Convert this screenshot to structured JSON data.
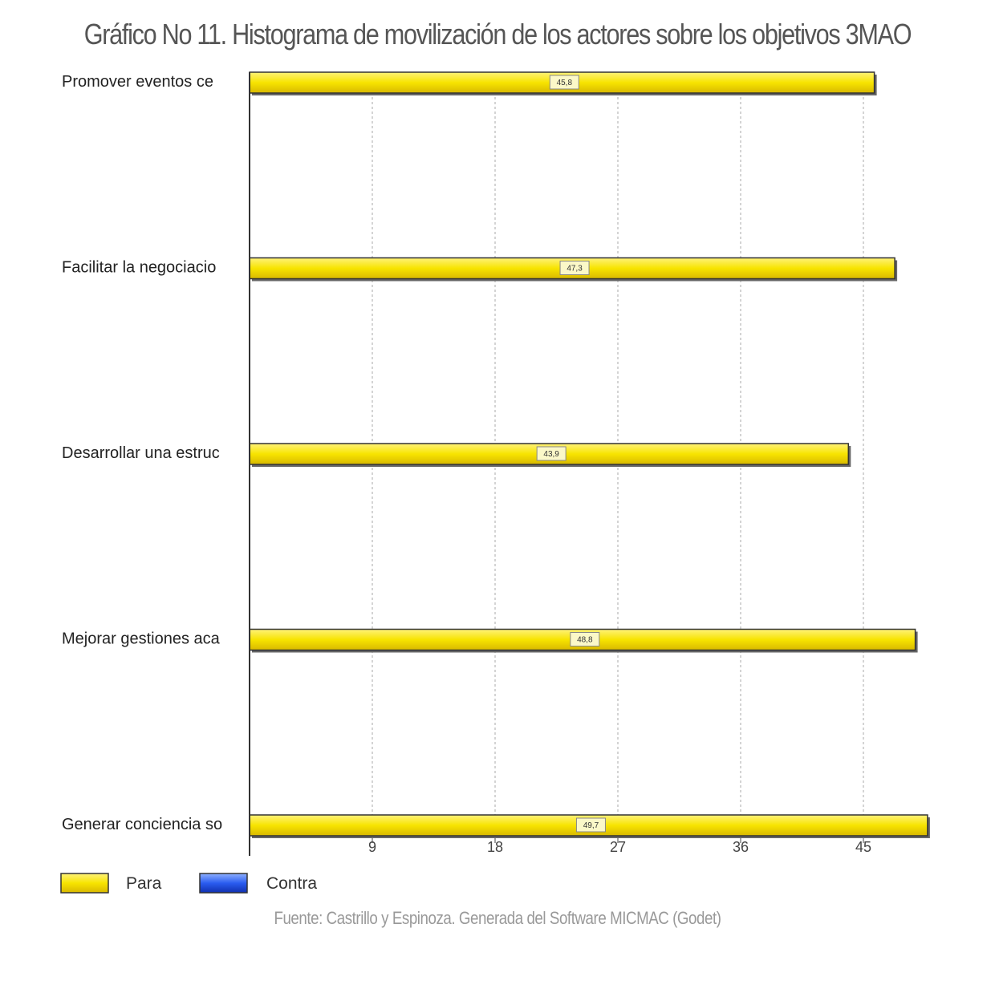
{
  "chart_data": {
    "type": "bar",
    "orientation": "horizontal",
    "title": "Gráfico No 11. Histograma de movilización de los actores sobre los objetivos 3MAO",
    "categories": [
      "Promover eventos ce",
      "Facilitar la negociacio",
      "Desarrollar una estruc",
      "Mejorar gestiones aca",
      "Generar conciencia so"
    ],
    "series": [
      {
        "name": "Para",
        "color": "#f5e000",
        "values": [
          45.8,
          47.3,
          43.9,
          48.8,
          49.7
        ]
      },
      {
        "name": "Contra",
        "color": "#1f4fe0",
        "values": [
          0,
          0,
          0,
          0,
          0
        ]
      }
    ],
    "data_labels": [
      "45,8",
      "47,3",
      "43,9",
      "48,8",
      "49,7"
    ],
    "xticks": [
      9,
      18,
      27,
      36,
      45
    ],
    "xlim": [
      0,
      50
    ],
    "grid": "vertical dashed",
    "legend": "bottom-left",
    "source": "Fuente: Castrillo y Espinoza. Generada del Software MICMAC (Godet)"
  }
}
